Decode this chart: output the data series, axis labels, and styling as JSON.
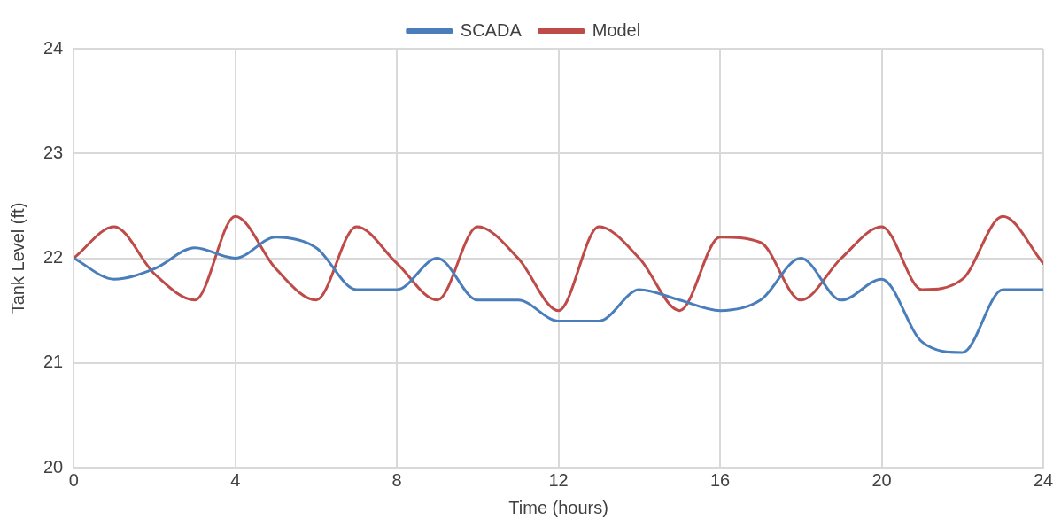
{
  "chart_data": {
    "type": "line",
    "xlabel": "Time (hours)",
    "ylabel": "Tank Level (ft)",
    "x": [
      0,
      1,
      2,
      3,
      4,
      5,
      6,
      7,
      8,
      9,
      10,
      11,
      12,
      13,
      14,
      15,
      16,
      17,
      18,
      19,
      20,
      21,
      22,
      23,
      24
    ],
    "series": [
      {
        "name": "SCADA",
        "color": "#4a7ebb",
        "values": [
          22.0,
          21.8,
          21.9,
          22.1,
          22.0,
          22.2,
          22.1,
          21.7,
          21.7,
          22.0,
          21.6,
          21.6,
          21.4,
          21.4,
          21.7,
          21.6,
          21.5,
          21.6,
          22.0,
          21.6,
          21.8,
          21.2,
          21.1,
          21.7,
          21.7
        ]
      },
      {
        "name": "Model",
        "color": "#be4b48",
        "values": [
          22.0,
          22.3,
          21.85,
          21.6,
          22.4,
          21.9,
          21.6,
          22.3,
          21.95,
          21.6,
          22.3,
          22.0,
          21.5,
          22.3,
          22.0,
          21.5,
          22.2,
          22.15,
          21.6,
          22.0,
          22.3,
          21.7,
          21.8,
          22.4,
          21.95
        ]
      }
    ],
    "xlim": [
      0,
      24
    ],
    "xticks": [
      0,
      4,
      8,
      12,
      16,
      20,
      24
    ],
    "ylim": [
      20,
      24
    ],
    "yticks": [
      20,
      21,
      22,
      23,
      24
    ],
    "grid": true,
    "legend": "top",
    "marker": "none",
    "line_style": "solid"
  }
}
